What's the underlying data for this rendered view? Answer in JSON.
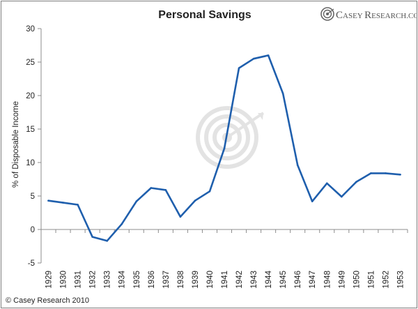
{
  "chart_data": {
    "type": "line",
    "title": "Personal Savings",
    "xlabel": "",
    "ylabel": "% of Disposable Income",
    "ylim": [
      -5,
      30
    ],
    "yticks": [
      -5,
      0,
      5,
      10,
      15,
      20,
      25,
      30
    ],
    "grid": false,
    "categories": [
      "1929",
      "1930",
      "1931",
      "1932",
      "1933",
      "1934",
      "1935",
      "1936",
      "1937",
      "1938",
      "1939",
      "1940",
      "1941",
      "1942",
      "1943",
      "1944",
      "1945",
      "1946",
      "1947",
      "1948",
      "1949",
      "1950",
      "1951",
      "1952",
      "1953"
    ],
    "series": [
      {
        "name": "Personal Savings",
        "color": "#1f5fad",
        "values": [
          4.3,
          4.0,
          3.7,
          -1.1,
          -1.7,
          0.8,
          4.2,
          6.2,
          5.9,
          1.9,
          4.3,
          5.7,
          12.1,
          24.1,
          25.5,
          26.0,
          20.3,
          9.6,
          4.2,
          6.9,
          4.9,
          7.1,
          8.4,
          8.4,
          8.2
        ]
      }
    ]
  },
  "branding": {
    "logo_word_1_initial": "C",
    "logo_word_1_rest": "ASEY",
    "logo_word_2_initial": "R",
    "logo_word_2_rest": "ESEARCH.COM",
    "copyright": "© Casey Research 2010"
  },
  "colors": {
    "line": "#1f5fad",
    "axis": "#8c8c8c",
    "watermark": "#dcdcdc"
  }
}
